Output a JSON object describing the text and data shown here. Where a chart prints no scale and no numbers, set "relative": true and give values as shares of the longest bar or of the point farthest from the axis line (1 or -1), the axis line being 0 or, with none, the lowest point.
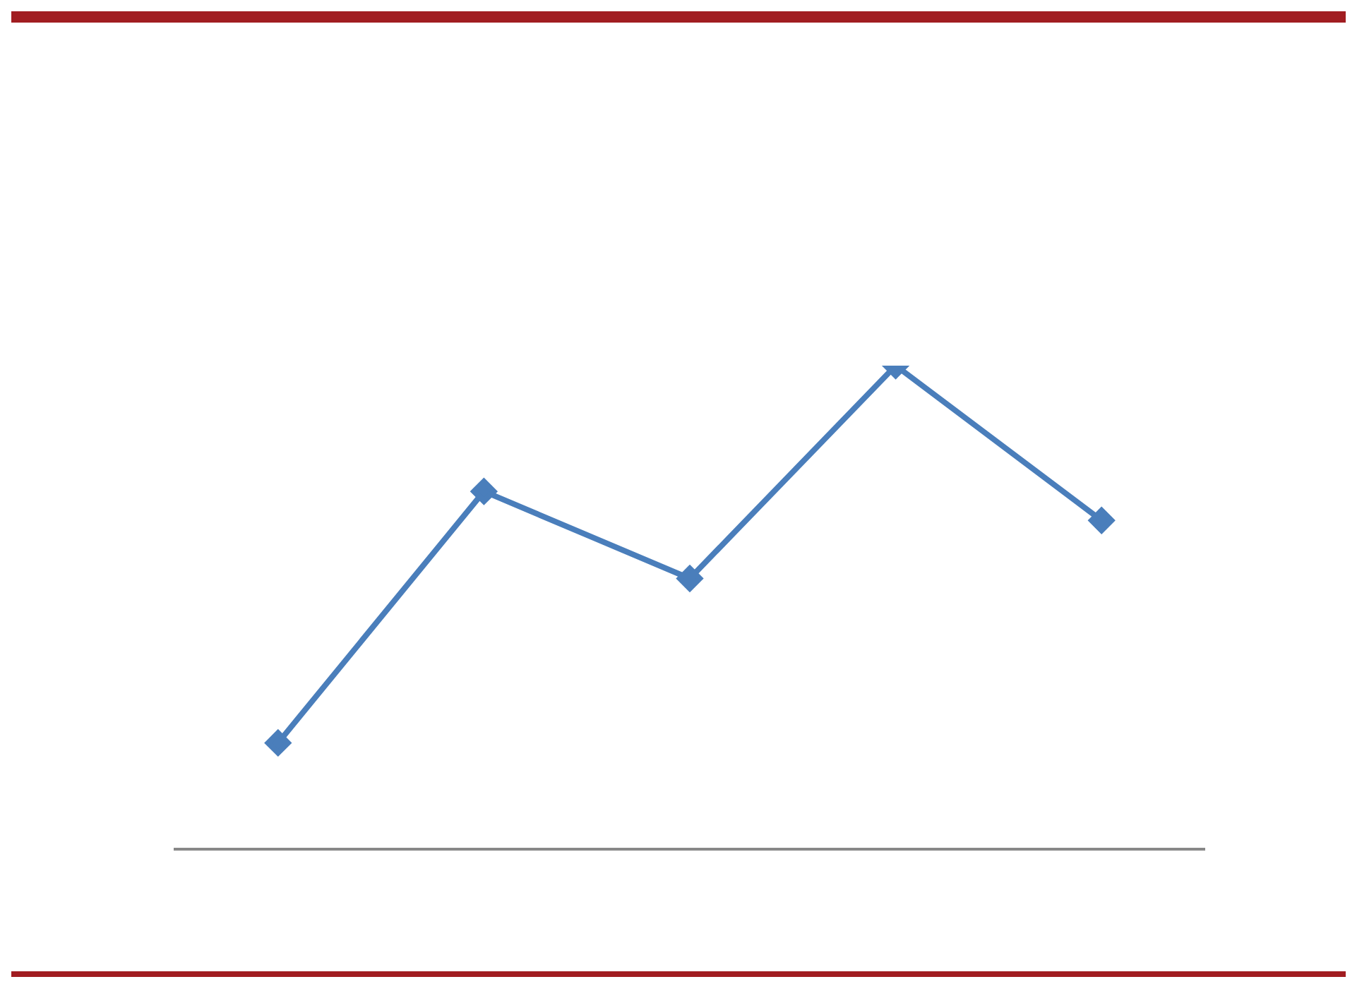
{
  "chart_data": {
    "type": "line",
    "relative": true,
    "categories": [
      null,
      null,
      null,
      null,
      null
    ],
    "series": [
      {
        "color": "#4a7ebb",
        "values": [
          0.22,
          0.74,
          0.56,
          1,
          0.68
        ]
      }
    ],
    "marker": "diamond",
    "line_style": "solid",
    "grid": false,
    "legend": false
  }
}
